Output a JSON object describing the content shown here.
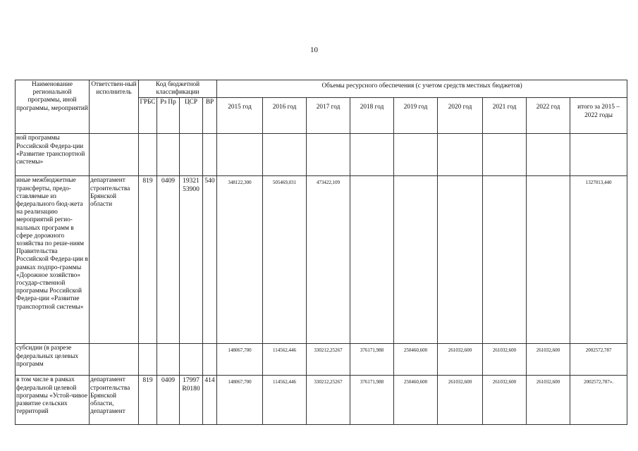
{
  "page_number": "10",
  "header": {
    "name": "Наименование региональной программы, иной программы, мероприятий",
    "responsible": "Ответствен-ный исполнитель",
    "budget_code": "Код бюджетной классификации",
    "grbs": "ГРБС",
    "rzpr": "Рз Пр",
    "csr": "ЦСР",
    "vr": "ВР",
    "volumes": "Объемы ресурсного обеспечения (с учетом средств местных бюджетов)",
    "years": [
      "2015 год",
      "2016 год",
      "2017 год",
      "2018 год",
      "2019 год",
      "2020 год",
      "2021 год",
      "2022 год"
    ],
    "total": "итого за 2015 – 2022 годы"
  },
  "rows": [
    {
      "name": "ной программы Российской Федера-ции «Развитие транспортной системы»",
      "responsible": "",
      "grbs": "",
      "rzpr": "",
      "csr": "",
      "vr": "",
      "values": [
        "",
        "",
        "",
        "",
        "",
        "",
        "",
        ""
      ],
      "total": ""
    },
    {
      "name": "иные межбюджетные трансферты, предо-ставляемые из федерального бюд-жета на реализацию мероприятий регио-нальных программ в сфере дорожного хозяйства по реше-ниям Правительства Российской Федера-ции в рамках подпро-граммы «Дорожное хозяйство» государ-ственной программы Российской Федера-ции «Развитие транспортной системы»",
      "responsible": "департамент строительства Брянской области",
      "grbs": "819",
      "rzpr": "0409",
      "csr": "19321 53900",
      "vr": "540",
      "values": [
        "348122,300",
        "505469,031",
        "473422,109",
        "",
        "",
        "",
        "",
        ""
      ],
      "total": "1327013,440"
    },
    {
      "name": "субсидии (в разрезе федеральных целевых программ",
      "responsible": "",
      "grbs": "",
      "rzpr": "",
      "csr": "",
      "vr": "",
      "values": [
        "148067,700",
        "114562,446",
        "330212,25267",
        "376171,988",
        "250460,600",
        "261032,600",
        "261032,600",
        "261032,600"
      ],
      "total": "2002572,787"
    },
    {
      "name": "в том числе в рамках федеральной целевой программы «Устой-чивое развитие сельских территорий",
      "responsible": "департамент строительства Брянской области, департамент",
      "grbs": "819",
      "rzpr": "0409",
      "csr": "17997 R0180",
      "vr": "414",
      "values": [
        "148067,700",
        "114562,446",
        "330212,25267",
        "376171,988",
        "250460,600",
        "261032,600",
        "261032,600",
        "261032,600"
      ],
      "total": "2002572,787»."
    }
  ]
}
